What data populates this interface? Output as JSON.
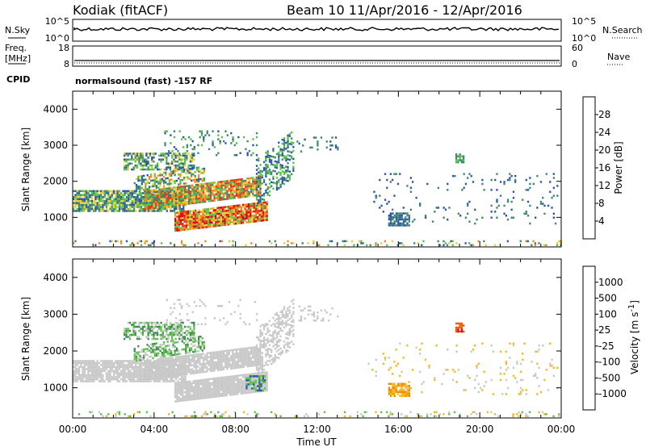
{
  "header": {
    "station": "Kodiak (fitACF)",
    "beam_range": "Beam 10   11/Apr/2016 - 12/Apr/2016"
  },
  "top_panels": {
    "nsky_label": "N.Sky",
    "nsky_ticks": [
      "10^5",
      "10^0"
    ],
    "nsearch_label": "N.Search",
    "nsearch_ticks": [
      "10^5",
      "10^0"
    ],
    "freq_label_line1": "Freq.",
    "freq_label_line2": "[MHz]",
    "freq_ticks": [
      "18",
      "8"
    ],
    "nave_label": "Nave",
    "nave_ticks": [
      "60",
      "0"
    ],
    "cpid_label": "CPID",
    "cpid_text": "normalsound (fast) -157 RF"
  },
  "chart_data": [
    {
      "type": "heatmap",
      "name": "power",
      "ylabel": "Slant Range [km]",
      "ylim": [
        180,
        4500
      ],
      "yticks": [
        "1000",
        "2000",
        "3000",
        "4000"
      ],
      "xlim": [
        0,
        24
      ],
      "colorbar_label": "Power [dB]",
      "colorbar_ticks": [
        "4",
        "8",
        "12",
        "16",
        "20",
        "24",
        "28"
      ],
      "colors": [
        "#1e1ee6",
        "#2e56a8",
        "#3e8a6e",
        "#5ac24a",
        "#e8cf2e",
        "#f08a1e",
        "#e23a1a",
        "#e00000"
      ],
      "regions": [
        {
          "t0": 0.0,
          "t1": 5.5,
          "r0": 1150,
          "r1": 1750,
          "tilt": 0,
          "density": 0.85,
          "level_min": 1,
          "level_max": 4
        },
        {
          "t0": 3.5,
          "t1": 9.2,
          "r0": 1200,
          "r1": 1700,
          "tilt": 400,
          "density": 0.9,
          "level_min": 2,
          "level_max": 6
        },
        {
          "t0": 5.0,
          "t1": 9.5,
          "r0": 600,
          "r1": 1100,
          "tilt": 300,
          "density": 0.95,
          "level_min": 3,
          "level_max": 7
        },
        {
          "t0": 2.5,
          "t1": 6.0,
          "r0": 2300,
          "r1": 2750,
          "tilt": 0,
          "density": 0.6,
          "level_min": 1,
          "level_max": 4
        },
        {
          "t0": 3.0,
          "t1": 6.5,
          "r0": 1700,
          "r1": 2100,
          "tilt": 300,
          "density": 0.55,
          "level_min": 1,
          "level_max": 5
        },
        {
          "t0": 4.5,
          "t1": 9.0,
          "r0": 2700,
          "r1": 3400,
          "tilt": 0,
          "density": 0.12,
          "level_min": 1,
          "level_max": 3
        },
        {
          "t0": 9.0,
          "t1": 10.8,
          "r0": 1300,
          "r1": 2600,
          "tilt": 800,
          "density": 0.45,
          "level_min": 1,
          "level_max": 3
        },
        {
          "t0": 15.5,
          "t1": 16.5,
          "r0": 750,
          "r1": 1100,
          "tilt": 0,
          "density": 0.75,
          "level_min": 1,
          "level_max": 2
        },
        {
          "t0": 14.5,
          "t1": 23.8,
          "r0": 800,
          "r1": 2200,
          "tilt": 0,
          "density": 0.05,
          "level_min": 1,
          "level_max": 2
        },
        {
          "t0": 11.0,
          "t1": 13.0,
          "r0": 2800,
          "r1": 3200,
          "tilt": 0,
          "density": 0.15,
          "level_min": 1,
          "level_max": 2
        },
        {
          "t0": 18.8,
          "t1": 19.2,
          "r0": 2500,
          "r1": 2750,
          "tilt": 0,
          "density": 0.7,
          "level_min": 2,
          "level_max": 3
        },
        {
          "t0": 0.0,
          "t1": 24.0,
          "r0": 200,
          "r1": 360,
          "tilt": 0,
          "density": 0.15,
          "level_min": 1,
          "level_max": 5
        }
      ]
    },
    {
      "type": "heatmap",
      "name": "velocity",
      "ylabel": "Slant Range [km]",
      "ylim": [
        180,
        4500
      ],
      "yticks": [
        "1000",
        "2000",
        "3000",
        "4000"
      ],
      "xlim": [
        0,
        24
      ],
      "xlabel": "Time UT",
      "xticks": [
        "00:00",
        "04:00",
        "08:00",
        "12:00",
        "16:00",
        "20:00",
        "00:00"
      ],
      "colorbar_label": "Velocity [m s",
      "colorbar_label_sup": "-1",
      "colorbar_label_end": "]",
      "colorbar_ticks": [
        "-1000",
        "-500",
        "-100",
        "-25",
        "25",
        "100",
        "500",
        "1000"
      ],
      "colors": [
        "#e00000",
        "#f05a00",
        "#f08c00",
        "#f5b81e",
        "#c8c8c8",
        "#5ac24a",
        "#3e8a4e",
        "#2e56a8",
        "#1e30c8"
      ],
      "regions": [
        {
          "t0": 0.0,
          "t1": 5.5,
          "r0": 1150,
          "r1": 1750,
          "tilt": 0,
          "density": 0.85,
          "level_min": 4,
          "level_max": 4
        },
        {
          "t0": 3.5,
          "t1": 9.2,
          "r0": 1200,
          "r1": 1700,
          "tilt": 400,
          "density": 0.9,
          "level_min": 4,
          "level_max": 4
        },
        {
          "t0": 5.0,
          "t1": 9.5,
          "r0": 600,
          "r1": 1100,
          "tilt": 300,
          "density": 0.95,
          "level_min": 4,
          "level_max": 4
        },
        {
          "t0": 2.5,
          "t1": 6.0,
          "r0": 2300,
          "r1": 2750,
          "tilt": 0,
          "density": 0.6,
          "level_min": 4,
          "level_max": 6
        },
        {
          "t0": 3.0,
          "t1": 6.5,
          "r0": 1700,
          "r1": 2100,
          "tilt": 300,
          "density": 0.55,
          "level_min": 4,
          "level_max": 6
        },
        {
          "t0": 4.5,
          "t1": 9.0,
          "r0": 2700,
          "r1": 3400,
          "tilt": 0,
          "density": 0.12,
          "level_min": 4,
          "level_max": 4
        },
        {
          "t0": 9.0,
          "t1": 10.8,
          "r0": 1300,
          "r1": 2600,
          "tilt": 800,
          "density": 0.45,
          "level_min": 4,
          "level_max": 4
        },
        {
          "t0": 8.5,
          "t1": 9.4,
          "r0": 900,
          "r1": 1300,
          "tilt": 0,
          "density": 0.6,
          "level_min": 5,
          "level_max": 7
        },
        {
          "t0": 15.5,
          "t1": 16.5,
          "r0": 750,
          "r1": 1100,
          "tilt": 0,
          "density": 0.75,
          "level_min": 2,
          "level_max": 3
        },
        {
          "t0": 14.5,
          "t1": 23.8,
          "r0": 800,
          "r1": 2200,
          "tilt": 0,
          "density": 0.05,
          "level_min": 3,
          "level_max": 4
        },
        {
          "t0": 11.0,
          "t1": 13.0,
          "r0": 2800,
          "r1": 3200,
          "tilt": 0,
          "density": 0.15,
          "level_min": 4,
          "level_max": 4
        },
        {
          "t0": 18.8,
          "t1": 19.2,
          "r0": 2500,
          "r1": 2750,
          "tilt": 0,
          "density": 0.7,
          "level_min": 0,
          "level_max": 1
        },
        {
          "t0": 0.0,
          "t1": 24.0,
          "r0": 200,
          "r1": 360,
          "tilt": 0,
          "density": 0.15,
          "level_min": 3,
          "level_max": 5
        }
      ]
    }
  ]
}
